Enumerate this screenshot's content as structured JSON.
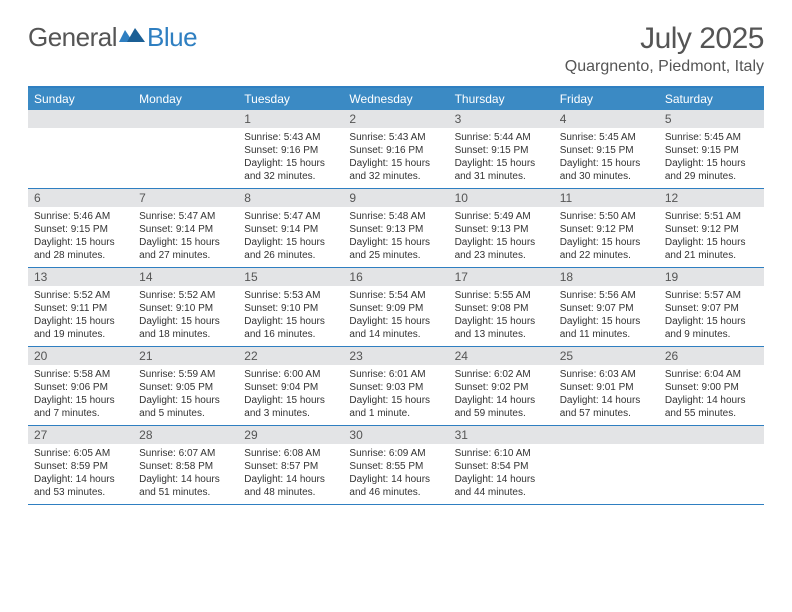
{
  "brand": {
    "part1": "General",
    "part2": "Blue"
  },
  "title": "July 2025",
  "location": "Quargnento, Piedmont, Italy",
  "day_names": [
    "Sunday",
    "Monday",
    "Tuesday",
    "Wednesday",
    "Thursday",
    "Friday",
    "Saturday"
  ],
  "colors": {
    "header_band": "#3b8ac4",
    "rule": "#2f7fc1",
    "daynum_bg": "#e3e4e6",
    "text": "#333333",
    "muted": "#555555",
    "bg": "#ffffff"
  },
  "typography": {
    "title_fontsize": 30,
    "location_fontsize": 16,
    "dow_fontsize": 12,
    "daynum_fontsize": 12,
    "detail_fontsize": 10
  },
  "weeks": [
    [
      {
        "n": "",
        "sunrise": "",
        "sunset": "",
        "daylight": ""
      },
      {
        "n": "",
        "sunrise": "",
        "sunset": "",
        "daylight": ""
      },
      {
        "n": "1",
        "sunrise": "Sunrise: 5:43 AM",
        "sunset": "Sunset: 9:16 PM",
        "daylight": "Daylight: 15 hours and 32 minutes."
      },
      {
        "n": "2",
        "sunrise": "Sunrise: 5:43 AM",
        "sunset": "Sunset: 9:16 PM",
        "daylight": "Daylight: 15 hours and 32 minutes."
      },
      {
        "n": "3",
        "sunrise": "Sunrise: 5:44 AM",
        "sunset": "Sunset: 9:15 PM",
        "daylight": "Daylight: 15 hours and 31 minutes."
      },
      {
        "n": "4",
        "sunrise": "Sunrise: 5:45 AM",
        "sunset": "Sunset: 9:15 PM",
        "daylight": "Daylight: 15 hours and 30 minutes."
      },
      {
        "n": "5",
        "sunrise": "Sunrise: 5:45 AM",
        "sunset": "Sunset: 9:15 PM",
        "daylight": "Daylight: 15 hours and 29 minutes."
      }
    ],
    [
      {
        "n": "6",
        "sunrise": "Sunrise: 5:46 AM",
        "sunset": "Sunset: 9:15 PM",
        "daylight": "Daylight: 15 hours and 28 minutes."
      },
      {
        "n": "7",
        "sunrise": "Sunrise: 5:47 AM",
        "sunset": "Sunset: 9:14 PM",
        "daylight": "Daylight: 15 hours and 27 minutes."
      },
      {
        "n": "8",
        "sunrise": "Sunrise: 5:47 AM",
        "sunset": "Sunset: 9:14 PM",
        "daylight": "Daylight: 15 hours and 26 minutes."
      },
      {
        "n": "9",
        "sunrise": "Sunrise: 5:48 AM",
        "sunset": "Sunset: 9:13 PM",
        "daylight": "Daylight: 15 hours and 25 minutes."
      },
      {
        "n": "10",
        "sunrise": "Sunrise: 5:49 AM",
        "sunset": "Sunset: 9:13 PM",
        "daylight": "Daylight: 15 hours and 23 minutes."
      },
      {
        "n": "11",
        "sunrise": "Sunrise: 5:50 AM",
        "sunset": "Sunset: 9:12 PM",
        "daylight": "Daylight: 15 hours and 22 minutes."
      },
      {
        "n": "12",
        "sunrise": "Sunrise: 5:51 AM",
        "sunset": "Sunset: 9:12 PM",
        "daylight": "Daylight: 15 hours and 21 minutes."
      }
    ],
    [
      {
        "n": "13",
        "sunrise": "Sunrise: 5:52 AM",
        "sunset": "Sunset: 9:11 PM",
        "daylight": "Daylight: 15 hours and 19 minutes."
      },
      {
        "n": "14",
        "sunrise": "Sunrise: 5:52 AM",
        "sunset": "Sunset: 9:10 PM",
        "daylight": "Daylight: 15 hours and 18 minutes."
      },
      {
        "n": "15",
        "sunrise": "Sunrise: 5:53 AM",
        "sunset": "Sunset: 9:10 PM",
        "daylight": "Daylight: 15 hours and 16 minutes."
      },
      {
        "n": "16",
        "sunrise": "Sunrise: 5:54 AM",
        "sunset": "Sunset: 9:09 PM",
        "daylight": "Daylight: 15 hours and 14 minutes."
      },
      {
        "n": "17",
        "sunrise": "Sunrise: 5:55 AM",
        "sunset": "Sunset: 9:08 PM",
        "daylight": "Daylight: 15 hours and 13 minutes."
      },
      {
        "n": "18",
        "sunrise": "Sunrise: 5:56 AM",
        "sunset": "Sunset: 9:07 PM",
        "daylight": "Daylight: 15 hours and 11 minutes."
      },
      {
        "n": "19",
        "sunrise": "Sunrise: 5:57 AM",
        "sunset": "Sunset: 9:07 PM",
        "daylight": "Daylight: 15 hours and 9 minutes."
      }
    ],
    [
      {
        "n": "20",
        "sunrise": "Sunrise: 5:58 AM",
        "sunset": "Sunset: 9:06 PM",
        "daylight": "Daylight: 15 hours and 7 minutes."
      },
      {
        "n": "21",
        "sunrise": "Sunrise: 5:59 AM",
        "sunset": "Sunset: 9:05 PM",
        "daylight": "Daylight: 15 hours and 5 minutes."
      },
      {
        "n": "22",
        "sunrise": "Sunrise: 6:00 AM",
        "sunset": "Sunset: 9:04 PM",
        "daylight": "Daylight: 15 hours and 3 minutes."
      },
      {
        "n": "23",
        "sunrise": "Sunrise: 6:01 AM",
        "sunset": "Sunset: 9:03 PM",
        "daylight": "Daylight: 15 hours and 1 minute."
      },
      {
        "n": "24",
        "sunrise": "Sunrise: 6:02 AM",
        "sunset": "Sunset: 9:02 PM",
        "daylight": "Daylight: 14 hours and 59 minutes."
      },
      {
        "n": "25",
        "sunrise": "Sunrise: 6:03 AM",
        "sunset": "Sunset: 9:01 PM",
        "daylight": "Daylight: 14 hours and 57 minutes."
      },
      {
        "n": "26",
        "sunrise": "Sunrise: 6:04 AM",
        "sunset": "Sunset: 9:00 PM",
        "daylight": "Daylight: 14 hours and 55 minutes."
      }
    ],
    [
      {
        "n": "27",
        "sunrise": "Sunrise: 6:05 AM",
        "sunset": "Sunset: 8:59 PM",
        "daylight": "Daylight: 14 hours and 53 minutes."
      },
      {
        "n": "28",
        "sunrise": "Sunrise: 6:07 AM",
        "sunset": "Sunset: 8:58 PM",
        "daylight": "Daylight: 14 hours and 51 minutes."
      },
      {
        "n": "29",
        "sunrise": "Sunrise: 6:08 AM",
        "sunset": "Sunset: 8:57 PM",
        "daylight": "Daylight: 14 hours and 48 minutes."
      },
      {
        "n": "30",
        "sunrise": "Sunrise: 6:09 AM",
        "sunset": "Sunset: 8:55 PM",
        "daylight": "Daylight: 14 hours and 46 minutes."
      },
      {
        "n": "31",
        "sunrise": "Sunrise: 6:10 AM",
        "sunset": "Sunset: 8:54 PM",
        "daylight": "Daylight: 14 hours and 44 minutes."
      },
      {
        "n": "",
        "sunrise": "",
        "sunset": "",
        "daylight": ""
      },
      {
        "n": "",
        "sunrise": "",
        "sunset": "",
        "daylight": ""
      }
    ]
  ]
}
